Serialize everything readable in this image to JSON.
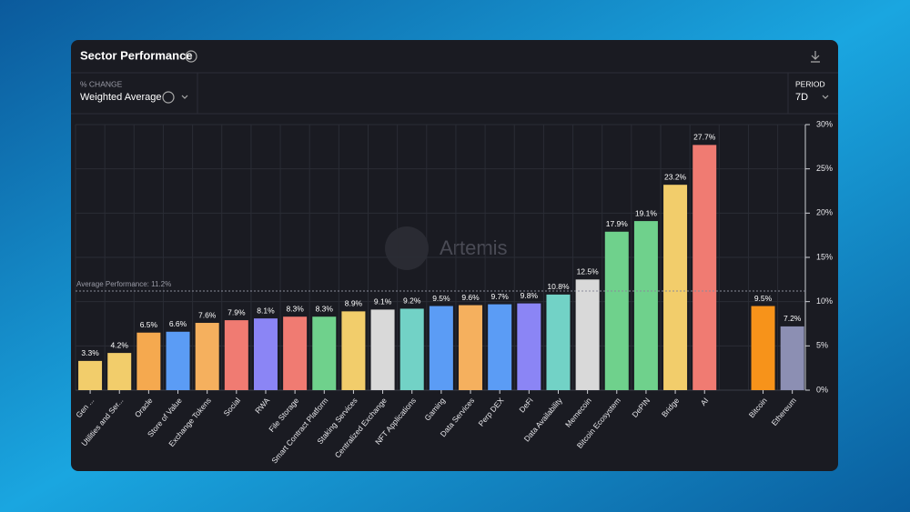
{
  "panel": {
    "title": "Sector Performance",
    "metric_label": "% CHANGE",
    "metric_value": "Weighted Average",
    "period_label": "PERIOD",
    "period_value": "7D",
    "watermark": "Artemis"
  },
  "chart_data": {
    "type": "bar",
    "categories": [
      "Gen ...",
      "Utilities and Ser...",
      "Oracle",
      "Store of Value",
      "Exchange Tokens",
      "Social",
      "RWA",
      "File Storage",
      "Smart Contract Platform",
      "Staking Services",
      "Centralized Exchange",
      "NFT Applications",
      "Gaming",
      "Data Services",
      "Perp DEX",
      "DeFi",
      "Data Availability",
      "Memecoin",
      "Bitcoin Ecosystem",
      "DePIN",
      "Bridge",
      "AI",
      null,
      "Bitcoin",
      "Ethereum"
    ],
    "values": [
      3.3,
      4.2,
      6.5,
      6.6,
      7.6,
      7.9,
      8.1,
      8.3,
      8.3,
      8.9,
      9.1,
      9.2,
      9.5,
      9.6,
      9.7,
      9.8,
      10.8,
      12.5,
      17.9,
      19.1,
      23.2,
      27.7,
      null,
      9.5,
      7.2
    ],
    "value_labels": [
      "3.3%",
      "4.2%",
      "6.5%",
      "6.6%",
      "7.6%",
      "7.9%",
      "8.1%",
      "8.3%",
      "8.3%",
      "8.9%",
      "9.1%",
      "9.2%",
      "9.5%",
      "9.6%",
      "9.7%",
      "9.8%",
      "10.8%",
      "12.5%",
      "17.9%",
      "19.1%",
      "23.2%",
      "27.7%",
      null,
      "9.5%",
      "7.2%"
    ],
    "colors": [
      "#f2cd6b",
      "#f2cd6b",
      "#f5a94f",
      "#5b9cf5",
      "#f5b05e",
      "#f07b72",
      "#8b85f5",
      "#f07b72",
      "#6fd18c",
      "#f2cd6b",
      "#d9d9d9",
      "#72d2c6",
      "#5b9cf5",
      "#f5b05e",
      "#5b9cf5",
      "#8b85f5",
      "#72d2c6",
      "#d9d9d9",
      "#6fd18c",
      "#6fd18c",
      "#f2cd6b",
      "#f07b72",
      null,
      "#f7931a",
      "#8c8fb3"
    ],
    "ylim": [
      0,
      30
    ],
    "yticks": [
      {
        "value": 0,
        "label": "0%"
      },
      {
        "value": 5,
        "label": "5%"
      },
      {
        "value": 10,
        "label": "10%"
      },
      {
        "value": 15,
        "label": "15%"
      },
      {
        "value": 20,
        "label": "20%"
      },
      {
        "value": 25,
        "label": "25%"
      },
      {
        "value": 30,
        "label": "30%"
      }
    ],
    "grid": true,
    "average": {
      "value": 11.2,
      "label": "Average Performance: 11.2%"
    }
  }
}
